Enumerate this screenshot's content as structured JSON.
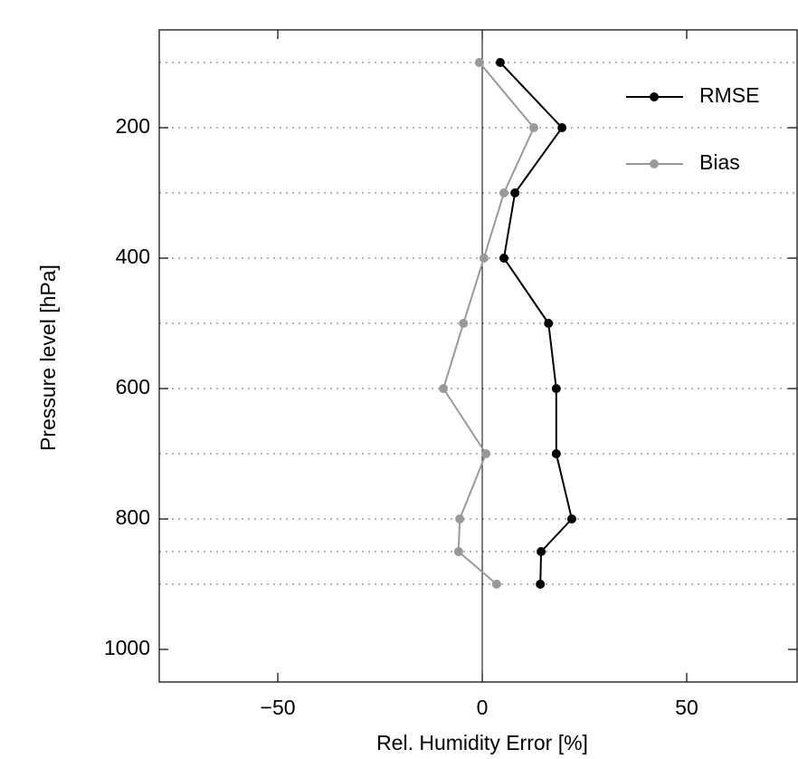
{
  "chart_data": {
    "type": "line",
    "x_label": "Rel. Humidity Error [%]",
    "y_label": "Pressure level [hPa]",
    "y": [
      100,
      200,
      300,
      400,
      500,
      600,
      700,
      800,
      850,
      900
    ],
    "series": [
      {
        "name": "RMSE",
        "color": "#000000",
        "values": [
          4.4,
          19.5,
          8,
          5.3,
          16.2,
          18.1,
          18.1,
          21.9,
          14.4,
          14.2
        ]
      },
      {
        "name": "Bias",
        "color": "#999999",
        "values": [
          -0.7,
          12.6,
          5.3,
          0.4,
          -4.6,
          -9.5,
          0.9,
          -5.5,
          -5.8,
          3.5
        ]
      }
    ],
    "xlim": [
      -79,
      77
    ],
    "xticks": [
      {
        "value": -50,
        "label": "−50"
      },
      0,
      50
    ],
    "ylim": [
      1050,
      50
    ],
    "yticks": [
      200,
      400,
      600,
      800,
      1000
    ],
    "grid": true,
    "legend_position": "upper right"
  }
}
